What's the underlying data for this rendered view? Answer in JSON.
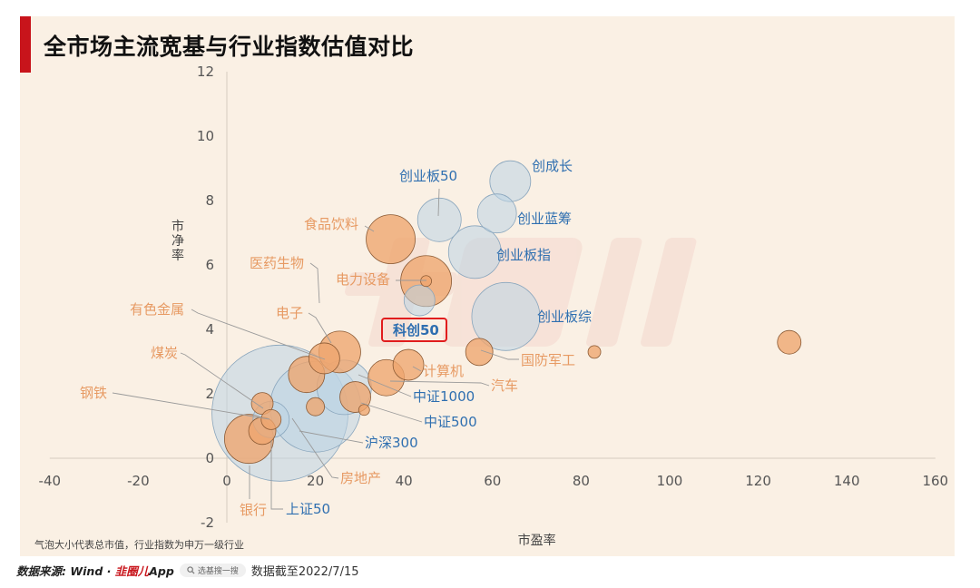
{
  "title": "全市场主流宽基与行业指数估值对比",
  "footnote": "气泡大小代表总市值，行业指数为申万一级行业",
  "footer": {
    "source_prefix": "数据来源: Wind · ",
    "brand": "韭圈儿",
    "app": "App",
    "search_label": "选基搜一搜",
    "date_text": "数据截至2022/7/15"
  },
  "chart_data": {
    "type": "scatter",
    "bubble": true,
    "xlabel": "市盈率",
    "ylabel": "市净率",
    "xlim": [
      -40,
      160
    ],
    "ylim": [
      -2,
      12
    ],
    "x_ticks": [
      -40,
      -20,
      0,
      20,
      40,
      60,
      80,
      100,
      120,
      140,
      160
    ],
    "y_ticks": [
      -2,
      0,
      2,
      4,
      6,
      8,
      10,
      12
    ],
    "grid": false,
    "colors": {
      "broad": "#bcd3e4",
      "industry": "#eea56e",
      "broad_label": "#2f6fb0",
      "industry_label": "#e79a63",
      "highlight": "#e11d1d"
    },
    "broad_indices": [
      {
        "label": "创成长",
        "x": 64,
        "y": 8.6,
        "size": 45
      },
      {
        "label": "创业板50",
        "x": 48,
        "y": 7.4,
        "size": 48
      },
      {
        "label": "创业蓝筹",
        "x": 61,
        "y": 7.6,
        "size": 43
      },
      {
        "label": "创业板指",
        "x": 56,
        "y": 6.4,
        "size": 58
      },
      {
        "label": "科创50",
        "x": 43.5,
        "y": 4.9,
        "size": 34,
        "highlight": true
      },
      {
        "label": "创业板综",
        "x": 63,
        "y": 4.4,
        "size": 75
      },
      {
        "label": "中证1000",
        "x": 26.5,
        "y": 2.2,
        "size": 60
      },
      {
        "label": "中证500",
        "x": 20,
        "y": 1.6,
        "size": 100
      },
      {
        "label": "沪深300",
        "x": 12,
        "y": 1.4,
        "size": 150
      },
      {
        "label": "上证50",
        "x": 10,
        "y": 1.2,
        "size": 40
      }
    ],
    "industries": [
      {
        "label": "食品饮料",
        "x": 37,
        "y": 6.8,
        "size": 54
      },
      {
        "label": "医药生物",
        "x": 45,
        "y": 5.5,
        "size": 56
      },
      {
        "label": "电力设备",
        "x": 45,
        "y": 5.5,
        "size": 12
      },
      {
        "label": "电子",
        "x": 25.5,
        "y": 3.3,
        "size": 46
      },
      {
        "label": "有色金属",
        "x": 22,
        "y": 3.1,
        "size": 34
      },
      {
        "label": "煤炭",
        "x": 8,
        "y": 1.7,
        "size": 24
      },
      {
        "label": "钢铁",
        "x": 10,
        "y": 1.2,
        "size": 22
      },
      {
        "label": "国防军工",
        "x": 57,
        "y": 3.3,
        "size": 30
      },
      {
        "label": "计算机",
        "x": 41,
        "y": 2.9,
        "size": 34
      },
      {
        "label": "汽车",
        "x": 36,
        "y": 2.5,
        "size": 40
      },
      {
        "label": "房地产",
        "x": 8,
        "y": 0.85,
        "size": 30
      },
      {
        "label": "银行",
        "x": 5,
        "y": 0.6,
        "size": 54
      },
      {
        "label": "",
        "x": 127,
        "y": 3.6,
        "size": 26
      },
      {
        "label": "",
        "x": 83,
        "y": 3.3,
        "size": 14
      },
      {
        "label": "",
        "x": 29,
        "y": 1.9,
        "size": 34
      },
      {
        "label": "",
        "x": 18,
        "y": 2.6,
        "size": 40
      },
      {
        "label": "",
        "x": 31,
        "y": 1.5,
        "size": 12
      },
      {
        "label": "",
        "x": 20,
        "y": 1.6,
        "size": 20
      }
    ]
  }
}
